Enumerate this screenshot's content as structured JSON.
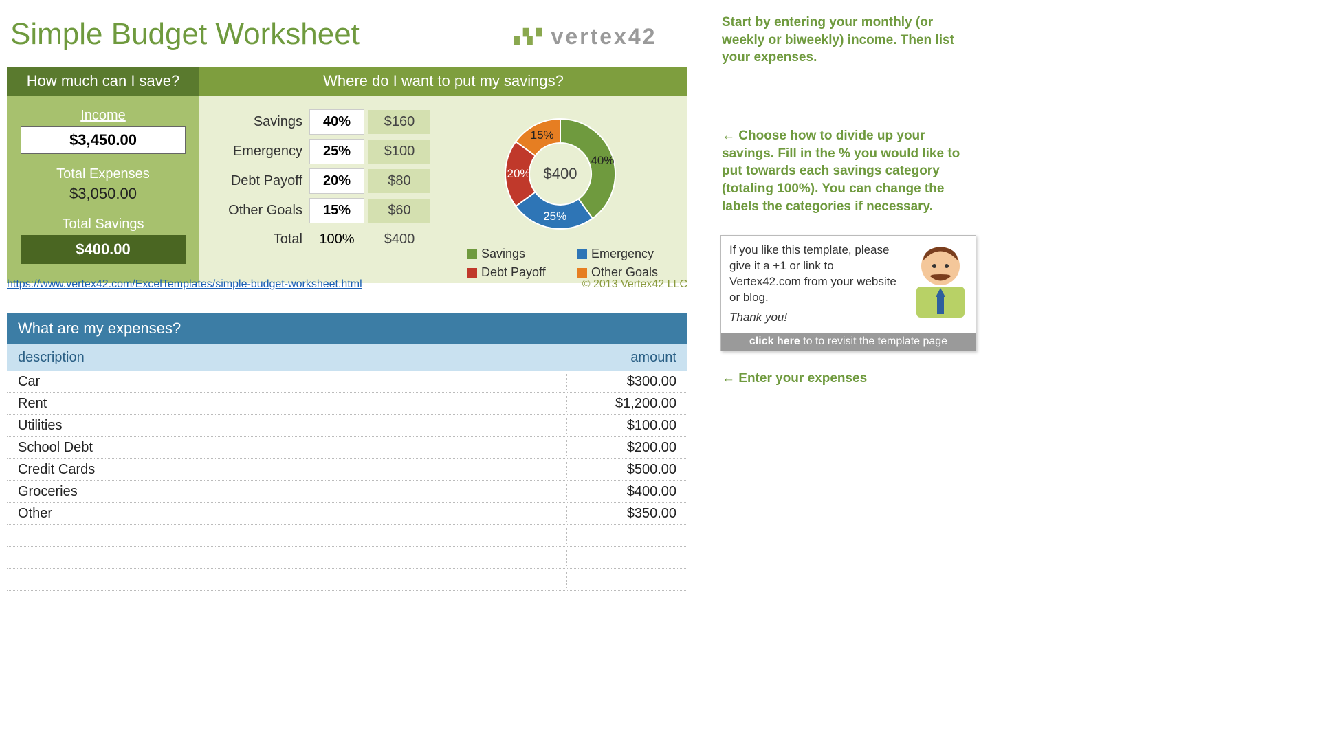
{
  "title": "Simple Budget Worksheet",
  "logo_text": "vertex42",
  "colors": {
    "olive_dark": "#5a7a2e",
    "olive_mid": "#7e9e3e",
    "olive_light": "#a7c16e",
    "olive_pale": "#e9efd3",
    "olive_cell": "#d4e0b0",
    "olive_deep": "#4a6622",
    "blue_header": "#3c7da5",
    "blue_sub": "#c9e1f0",
    "note_green": "#6f9a3e"
  },
  "save_panel": {
    "header": "How much can I save?",
    "income_label": "Income",
    "income_value": "$3,450.00",
    "expenses_label": "Total Expenses",
    "expenses_value": "$3,050.00",
    "savings_label": "Total Savings",
    "savings_value": "$400.00"
  },
  "allocation_panel": {
    "header": "Where do I want to put my savings?",
    "rows": [
      {
        "label": "Savings",
        "pct": "40%",
        "amount": "$160"
      },
      {
        "label": "Emergency",
        "pct": "25%",
        "amount": "$100"
      },
      {
        "label": "Debt Payoff",
        "pct": "20%",
        "amount": "$80"
      },
      {
        "label": "Other Goals",
        "pct": "15%",
        "amount": "$60"
      }
    ],
    "total": {
      "label": "Total",
      "pct": "100%",
      "amount": "$400"
    }
  },
  "donut": {
    "type": "donut",
    "center_text": "$400",
    "segments": [
      {
        "name": "Savings",
        "value": 40,
        "color": "#6f9a3e",
        "label": "40%"
      },
      {
        "name": "Emergency",
        "value": 25,
        "color": "#2e75b6",
        "label": "25%"
      },
      {
        "name": "Debt Payoff",
        "value": 20,
        "color": "#c0392b",
        "label": "20%"
      },
      {
        "name": "Other Goals",
        "value": 15,
        "color": "#e67e22",
        "label": "15%"
      }
    ],
    "legend": [
      {
        "label": "Savings",
        "color": "#6f9a3e"
      },
      {
        "label": "Emergency",
        "color": "#2e75b6"
      },
      {
        "label": "Debt Payoff",
        "color": "#c0392b"
      },
      {
        "label": "Other Goals",
        "color": "#e67e22"
      }
    ]
  },
  "link_url": "https://www.vertex42.com/ExcelTemplates/simple-budget-worksheet.html",
  "copyright": "© 2013 Vertex42 LLC",
  "expenses": {
    "header": "What are my expenses?",
    "col1": "description",
    "col2": "amount",
    "rows": [
      {
        "desc": "Car",
        "amount": "$300.00"
      },
      {
        "desc": "Rent",
        "amount": "$1,200.00"
      },
      {
        "desc": "Utilities",
        "amount": "$100.00"
      },
      {
        "desc": "School Debt",
        "amount": "$200.00"
      },
      {
        "desc": "Credit Cards",
        "amount": "$500.00"
      },
      {
        "desc": "Groceries",
        "amount": "$400.00"
      },
      {
        "desc": "Other",
        "amount": "$350.00"
      }
    ]
  },
  "notes": {
    "n1": "Start by entering your monthly (or weekly or biweekly) income. Then list your expenses.",
    "n2": "← Choose how to divide up your savings. Fill in the % you would like to put towards each savings category (totaling 100%). You can change the labels the categories if necessary.",
    "n3": "← Enter your expenses"
  },
  "promo": {
    "text": "If you like this template, please give it a +1 or link to Vertex42.com from your website or blog.",
    "thanks": "Thank you!",
    "foot_bold": "click here",
    "foot_rest": " to to revisit the template page"
  }
}
